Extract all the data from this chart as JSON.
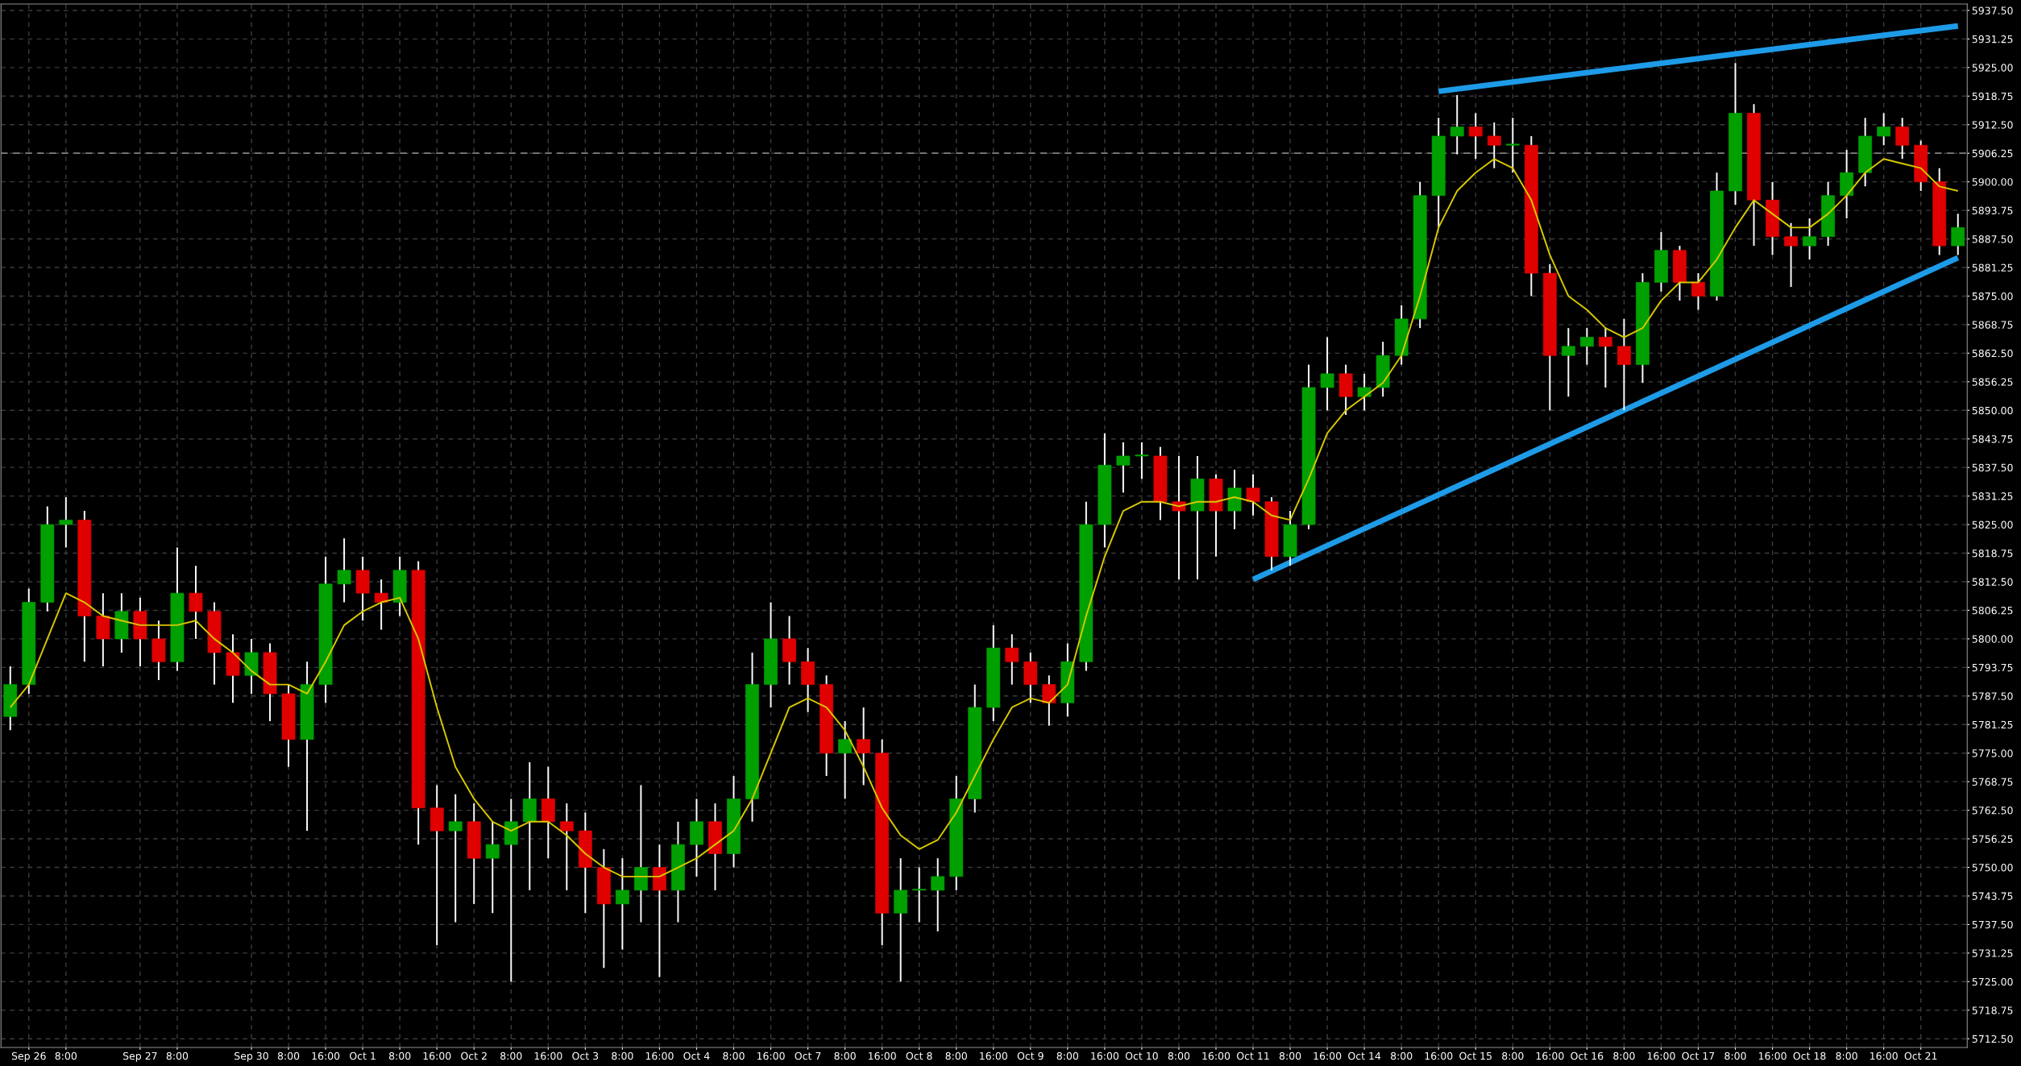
{
  "chart_data": {
    "type": "candlestick",
    "categories": [
      null,
      "Sep 26",
      null,
      "8:00",
      null,
      null,
      null,
      "Sep 27",
      null,
      "8:00",
      null,
      null,
      null,
      "Sep 30",
      null,
      "8:00",
      null,
      "16:00",
      null,
      "Oct 1",
      null,
      "8:00",
      null,
      "16:00",
      null,
      "Oct 2",
      null,
      "8:00",
      null,
      "16:00",
      null,
      "Oct 3",
      null,
      "8:00",
      null,
      "16:00",
      null,
      "Oct 4",
      null,
      "8:00",
      null,
      "16:00",
      null,
      "Oct 7",
      null,
      "8:00",
      null,
      "16:00",
      null,
      "Oct 8",
      null,
      "8:00",
      null,
      "16:00",
      null,
      "Oct 9",
      null,
      "8:00",
      null,
      "16:00",
      null,
      "Oct 10",
      null,
      "8:00",
      null,
      "16:00",
      null,
      "Oct 11",
      null,
      "8:00",
      null,
      "16:00",
      null,
      "Oct 14",
      null,
      "8:00",
      null,
      "16:00",
      null,
      "Oct 15",
      null,
      "8:00",
      null,
      "16:00",
      null,
      "Oct 16",
      null,
      "8:00",
      null,
      "16:00",
      null,
      "Oct 17",
      null,
      "8:00",
      null,
      "16:00",
      null,
      "Oct 18",
      null,
      "8:00",
      null,
      "16:00",
      null,
      "Oct 21",
      null,
      null
    ],
    "ohlc": [
      [
        5783,
        5794,
        5780,
        5790
      ],
      [
        5790,
        5811,
        5788,
        5808
      ],
      [
        5808,
        5829,
        5806,
        5825
      ],
      [
        5825,
        5831,
        5820,
        5826
      ],
      [
        5826,
        5828,
        5795,
        5805
      ],
      [
        5805,
        5810,
        5794,
        5800
      ],
      [
        5800,
        5810,
        5797,
        5806
      ],
      [
        5806,
        5809,
        5794,
        5800
      ],
      [
        5800,
        5804,
        5791,
        5795
      ],
      [
        5795,
        5820,
        5793,
        5810
      ],
      [
        5810,
        5816,
        5800,
        5806
      ],
      [
        5806,
        5808,
        5790,
        5797
      ],
      [
        5797,
        5801,
        5786,
        5792
      ],
      [
        5792,
        5800,
        5788,
        5797
      ],
      [
        5797,
        5799,
        5782,
        5788
      ],
      [
        5788,
        5790,
        5772,
        5778
      ],
      [
        5778,
        5795,
        5758,
        5790
      ],
      [
        5790,
        5818,
        5786,
        5812
      ],
      [
        5812,
        5822,
        5808,
        5815
      ],
      [
        5815,
        5818,
        5804,
        5810
      ],
      [
        5810,
        5813,
        5802,
        5808
      ],
      [
        5808,
        5818,
        5805,
        5815
      ],
      [
        5815,
        5817,
        5755,
        5763
      ],
      [
        5763,
        5768,
        5733,
        5758
      ],
      [
        5758,
        5766,
        5738,
        5760
      ],
      [
        5760,
        5764,
        5742,
        5752
      ],
      [
        5752,
        5760,
        5740,
        5755
      ],
      [
        5755,
        5765,
        5725,
        5760
      ],
      [
        5760,
        5773,
        5745,
        5765
      ],
      [
        5765,
        5772,
        5752,
        5760
      ],
      [
        5760,
        5764,
        5745,
        5758
      ],
      [
        5758,
        5762,
        5740,
        5750
      ],
      [
        5750,
        5754,
        5728,
        5742
      ],
      [
        5742,
        5752,
        5732,
        5745
      ],
      [
        5745,
        5768,
        5738,
        5750
      ],
      [
        5750,
        5755,
        5726,
        5745
      ],
      [
        5745,
        5760,
        5738,
        5755
      ],
      [
        5755,
        5765,
        5748,
        5760
      ],
      [
        5760,
        5764,
        5745,
        5753
      ],
      [
        5753,
        5770,
        5750,
        5765
      ],
      [
        5765,
        5797,
        5760,
        5790
      ],
      [
        5790,
        5808,
        5785,
        5800
      ],
      [
        5800,
        5805,
        5790,
        5795
      ],
      [
        5795,
        5798,
        5784,
        5790
      ],
      [
        5790,
        5792,
        5770,
        5775
      ],
      [
        5775,
        5782,
        5765,
        5778
      ],
      [
        5778,
        5785,
        5768,
        5775
      ],
      [
        5775,
        5778,
        5733,
        5740
      ],
      [
        5740,
        5752,
        5725,
        5745
      ],
      [
        5745,
        5750,
        5738,
        5745
      ],
      [
        5745,
        5752,
        5736,
        5748
      ],
      [
        5748,
        5770,
        5745,
        5765
      ],
      [
        5765,
        5790,
        5762,
        5785
      ],
      [
        5785,
        5803,
        5782,
        5798
      ],
      [
        5798,
        5801,
        5790,
        5795
      ],
      [
        5795,
        5797,
        5786,
        5790
      ],
      [
        5790,
        5792,
        5781,
        5786
      ],
      [
        5786,
        5799,
        5783,
        5795
      ],
      [
        5795,
        5830,
        5793,
        5825
      ],
      [
        5825,
        5845,
        5820,
        5838
      ],
      [
        5838,
        5843,
        5832,
        5840
      ],
      [
        5840,
        5843,
        5835,
        5840
      ],
      [
        5840,
        5842,
        5826,
        5830
      ],
      [
        5830,
        5840,
        5813,
        5828
      ],
      [
        5828,
        5840,
        5813,
        5835
      ],
      [
        5835,
        5836,
        5818,
        5828
      ],
      [
        5828,
        5837,
        5824,
        5833
      ],
      [
        5833,
        5836,
        5827,
        5830
      ],
      [
        5830,
        5831,
        5815,
        5818
      ],
      [
        5818,
        5828,
        5816,
        5825
      ],
      [
        5825,
        5860,
        5824,
        5855
      ],
      [
        5855,
        5866,
        5850,
        5858
      ],
      [
        5858,
        5860,
        5849,
        5853
      ],
      [
        5853,
        5858,
        5850,
        5855
      ],
      [
        5855,
        5865,
        5853,
        5862
      ],
      [
        5862,
        5873,
        5860,
        5870
      ],
      [
        5870,
        5900,
        5868,
        5897
      ],
      [
        5897,
        5914,
        5890,
        5910
      ],
      [
        5910,
        5919,
        5906,
        5912
      ],
      [
        5912,
        5915,
        5905,
        5910
      ],
      [
        5910,
        5913,
        5903,
        5908
      ],
      [
        5908,
        5914,
        5902,
        5908
      ],
      [
        5908,
        5910,
        5875,
        5880
      ],
      [
        5880,
        5882,
        5850,
        5862
      ],
      [
        5862,
        5868,
        5853,
        5864
      ],
      [
        5864,
        5868,
        5860,
        5866
      ],
      [
        5866,
        5868,
        5855,
        5864
      ],
      [
        5864,
        5870,
        5850,
        5860
      ],
      [
        5860,
        5880,
        5856,
        5878
      ],
      [
        5878,
        5889,
        5876,
        5885
      ],
      [
        5885,
        5886,
        5874,
        5878
      ],
      [
        5878,
        5880,
        5872,
        5875
      ],
      [
        5875,
        5902,
        5874,
        5898
      ],
      [
        5898,
        5926,
        5895,
        5915
      ],
      [
        5915,
        5917,
        5886,
        5896
      ],
      [
        5896,
        5900,
        5884,
        5888
      ],
      [
        5888,
        5891,
        5877,
        5886
      ],
      [
        5886,
        5892,
        5883,
        5888
      ],
      [
        5888,
        5900,
        5886,
        5897
      ],
      [
        5897,
        5907,
        5892,
        5902
      ],
      [
        5902,
        5914,
        5899,
        5910
      ],
      [
        5910,
        5915,
        5908,
        5912
      ],
      [
        5912,
        5914,
        5905,
        5908
      ],
      [
        5908,
        5909,
        5898,
        5900
      ],
      [
        5900,
        5903,
        5884,
        5886
      ],
      [
        5886,
        5893,
        5884,
        5890
      ]
    ],
    "colors": [
      "#00a000",
      "#00a000",
      "#00a000",
      "#00a000",
      "#e00000",
      "#e00000",
      "#00a000",
      "#e00000",
      "#e00000",
      "#00a000",
      "#e00000",
      "#e00000",
      "#e00000",
      "#00a000",
      "#e00000",
      "#e00000",
      "#00a000",
      "#00a000",
      "#00a000",
      "#e00000",
      "#e00000",
      "#00a000",
      "#e00000",
      "#e00000",
      "#00a000",
      "#e00000",
      "#00a000",
      "#00a000",
      "#00a000",
      "#e00000",
      "#e00000",
      "#e00000",
      "#e00000",
      "#00a000",
      "#00a000",
      "#e00000",
      "#00a000",
      "#00a000",
      "#e00000",
      "#00a000",
      "#00a000",
      "#00a000",
      "#e00000",
      "#e00000",
      "#e00000",
      "#00a000",
      "#e00000",
      "#e00000",
      "#00a000",
      "#00a000",
      "#00a000",
      "#00a000",
      "#00a000",
      "#00a000",
      "#e00000",
      "#e00000",
      "#e00000",
      "#00a000",
      "#00a000",
      "#00a000",
      "#00a000",
      "#00a000",
      "#e00000",
      "#e00000",
      "#00a000",
      "#e00000",
      "#00a000",
      "#e00000",
      "#e00000",
      "#00a000",
      "#00a000",
      "#00a000",
      "#e00000",
      "#00a000",
      "#00a000",
      "#00a000",
      "#00a000",
      "#00a000",
      "#00a000",
      "#e00000",
      "#e00000",
      "#00a000",
      "#e00000",
      "#e00000",
      "#00a000",
      "#00a000",
      "#e00000",
      "#e00000",
      "#00a000",
      "#00a000",
      "#e00000",
      "#e00000",
      "#00a000",
      "#00a000",
      "#e00000",
      "#e00000",
      "#e00000",
      "#00a000",
      "#00a000",
      "#00a000",
      "#00a000",
      "#00a000",
      "#e00000",
      "#e00000",
      "#e00000",
      "#00a000"
    ],
    "series": [
      {
        "type": "line",
        "color": "#d8c800",
        "values": [
          5785,
          5790,
          5800,
          5810,
          5808,
          5805,
          5804,
          5803,
          5803,
          5803,
          5804,
          5800,
          5797,
          5793,
          5790,
          5790,
          5788,
          5795,
          5803,
          5806,
          5808,
          5809,
          5800,
          5785,
          5772,
          5765,
          5760,
          5758,
          5760,
          5760,
          5757,
          5753,
          5750,
          5748,
          5748,
          5748,
          5750,
          5752,
          5755,
          5758,
          5765,
          5775,
          5785,
          5787,
          5785,
          5780,
          5772,
          5763,
          5757,
          5754,
          5756,
          5762,
          5770,
          5778,
          5785,
          5787,
          5786,
          5790,
          5805,
          5818,
          5828,
          5830,
          5830,
          5829,
          5830,
          5830,
          5831,
          5830,
          5827,
          5826,
          5835,
          5845,
          5850,
          5853,
          5856,
          5862,
          5875,
          5890,
          5898,
          5902,
          5905,
          5903,
          5896,
          5884,
          5875,
          5872,
          5868,
          5866,
          5868,
          5874,
          5878,
          5878,
          5883,
          5890,
          5896,
          5893,
          5890,
          5890,
          5893,
          5897,
          5902,
          5905,
          5904,
          5903,
          5899,
          5898
        ]
      },
      {
        "type": "line",
        "color": "#1e9be8",
        "values": [
          null,
          null,
          null,
          null,
          null,
          null,
          null,
          null,
          null,
          null,
          null,
          null,
          null,
          null,
          null,
          null,
          null,
          null,
          null,
          null,
          null,
          null,
          null,
          null,
          null,
          null,
          null,
          null,
          null,
          null,
          null,
          null,
          null,
          null,
          null,
          null,
          null,
          null,
          null,
          null,
          null,
          null,
          null,
          null,
          null,
          null,
          null,
          null,
          null,
          null,
          null,
          null,
          null,
          null,
          null,
          null,
          null,
          null,
          null,
          null,
          null,
          null,
          null,
          null,
          null,
          null,
          null,
          null,
          null,
          null,
          null,
          null,
          null,
          null,
          null,
          null,
          null,
          5919.8,
          null,
          null,
          null,
          null,
          null,
          null,
          null,
          null,
          null,
          null,
          null,
          null,
          null,
          null,
          null,
          null,
          null,
          null,
          null,
          null,
          null,
          null,
          null,
          null,
          null,
          null,
          null,
          5934.1
        ]
      },
      {
        "type": "line",
        "color": "#1e9be8",
        "values": [
          null,
          null,
          null,
          null,
          null,
          null,
          null,
          null,
          null,
          null,
          null,
          null,
          null,
          null,
          null,
          null,
          null,
          null,
          null,
          null,
          null,
          null,
          null,
          null,
          null,
          null,
          null,
          null,
          null,
          null,
          null,
          null,
          null,
          null,
          null,
          null,
          null,
          null,
          null,
          null,
          null,
          null,
          null,
          null,
          null,
          null,
          null,
          null,
          null,
          null,
          null,
          null,
          null,
          null,
          null,
          null,
          null,
          null,
          null,
          null,
          null,
          null,
          null,
          null,
          null,
          null,
          null,
          5813.0,
          null,
          null,
          null,
          null,
          null,
          null,
          null,
          null,
          null,
          null,
          null,
          null,
          null,
          null,
          null,
          null,
          null,
          null,
          null,
          null,
          null,
          null,
          null,
          null,
          null,
          null,
          null,
          null,
          null,
          null,
          null,
          null,
          null,
          null,
          null,
          null,
          null,
          5883.4
        ]
      }
    ],
    "ylim": [
      5710.6,
      5938.9
    ],
    "yticks": [
      {
        "value": 5712.5,
        "label": "5712.50"
      },
      5718.75,
      {
        "value": 5725,
        "label": "5725.00"
      },
      5731.25,
      {
        "value": 5737.5,
        "label": "5737.50"
      },
      5743.75,
      {
        "value": 5750,
        "label": "5750.00"
      },
      5756.25,
      {
        "value": 5762.5,
        "label": "5762.50"
      },
      5768.75,
      {
        "value": 5775,
        "label": "5775.00"
      },
      5781.25,
      {
        "value": 5787.5,
        "label": "5787.50"
      },
      5793.75,
      {
        "value": 5800,
        "label": "5800.00"
      },
      5806.25,
      {
        "value": 5812.5,
        "label": "5812.50"
      },
      5818.75,
      {
        "value": 5825,
        "label": "5825.00"
      },
      5831.25,
      {
        "value": 5837.5,
        "label": "5837.50"
      },
      5843.75,
      {
        "value": 5850,
        "label": "5850.00"
      },
      5856.25,
      {
        "value": 5862.5,
        "label": "5862.50"
      },
      5868.75,
      {
        "value": 5875,
        "label": "5875.00"
      },
      5881.25,
      {
        "value": 5887.5,
        "label": "5887.50"
      },
      5893.75,
      {
        "value": 5900,
        "label": "5900.00"
      },
      5906.25,
      {
        "value": 5912.5,
        "label": "5912.50"
      },
      5918.75,
      {
        "value": 5925,
        "label": "5925.00"
      },
      5931.25,
      {
        "value": 5937.5,
        "label": "5937.50"
      }
    ],
    "ref_lines": [
      {
        "axis": "y",
        "value": 5906.25,
        "color": "#808080",
        "line_style": "dashed"
      }
    ],
    "grid": true
  }
}
